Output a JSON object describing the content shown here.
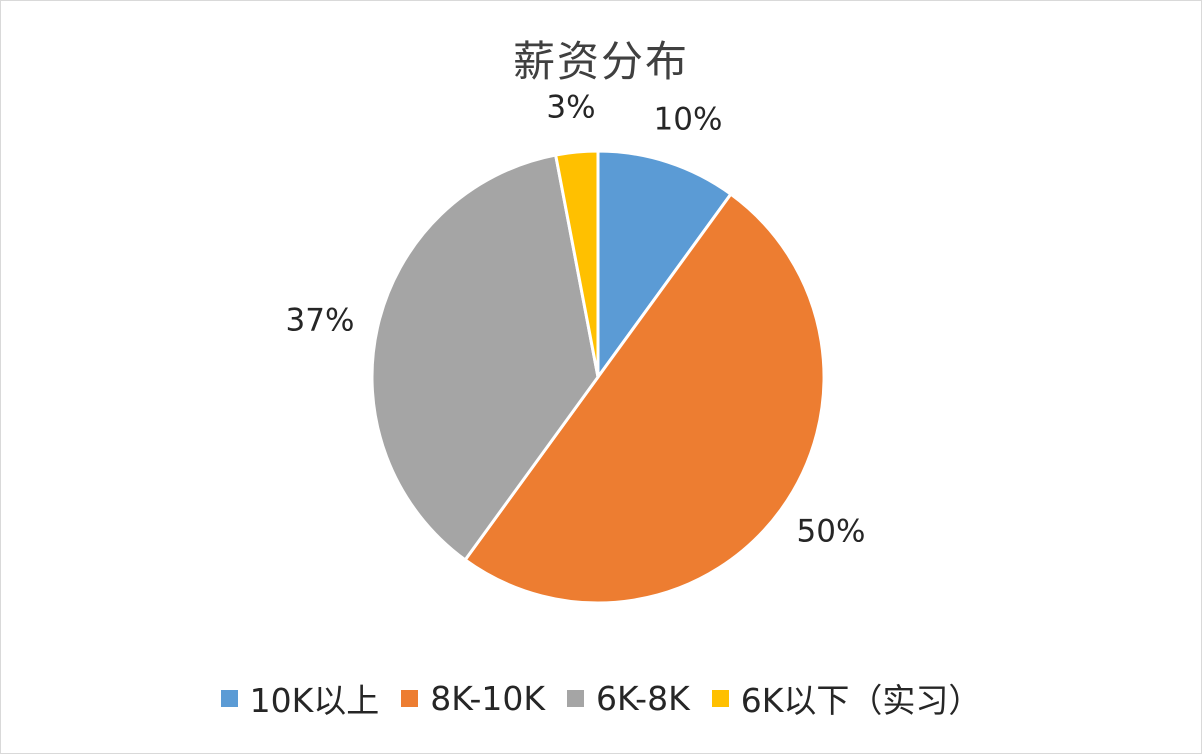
{
  "chart_data": {
    "type": "pie",
    "title": "薪资分布",
    "categories": [
      "10K以上",
      "8K-10K",
      "6K-8K",
      "6K以下（实习）"
    ],
    "values": [
      10,
      50,
      37,
      3
    ],
    "labels": [
      "10%",
      "50%",
      "37%",
      "3%"
    ],
    "colors": [
      "#5b9bd5",
      "#ed7d31",
      "#a5a5a5",
      "#ffc000"
    ],
    "legend_position": "bottom"
  }
}
